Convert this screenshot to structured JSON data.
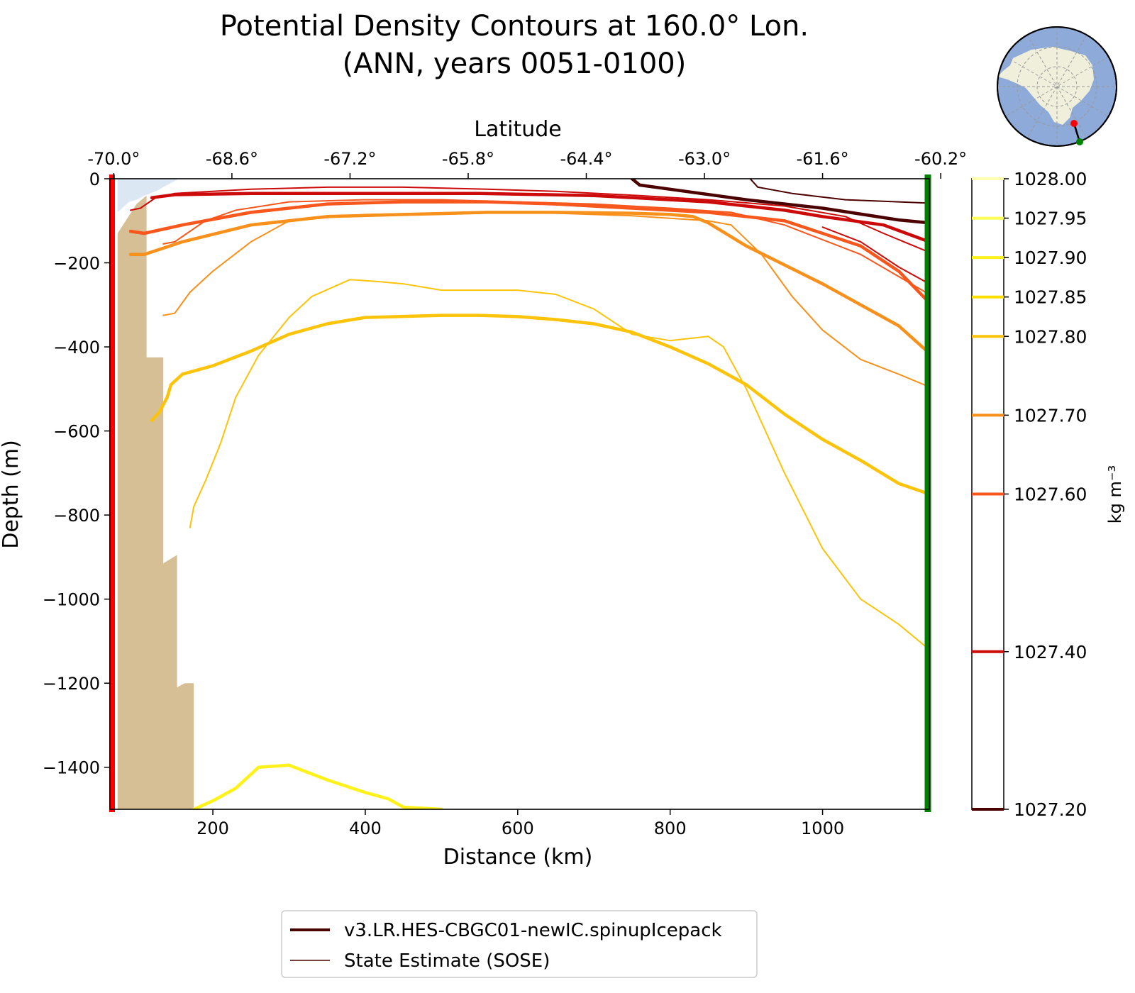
{
  "chart_data": {
    "type": "line",
    "title": "Potential Density Contours at 160.0° Lon.",
    "subtitle": "(ANN, years 0051-0100)",
    "xlabel": "Distance (km)",
    "ylabel": "Depth (m)",
    "top_xlabel": "Latitude",
    "xlim": [
      65,
      1140
    ],
    "ylim": [
      -1500,
      0
    ],
    "x_ticks": [
      200,
      400,
      600,
      800,
      1000
    ],
    "y_ticks": [
      0,
      -200,
      -400,
      -600,
      -800,
      -1000,
      -1200,
      -1400
    ],
    "y_tick_labels": [
      "0",
      "−200",
      "−400",
      "−600",
      "−800",
      "−1000",
      "−1200",
      "−1400"
    ],
    "top_ticks": [
      {
        "x": 70,
        "label": "-70.0°"
      },
      {
        "x": 225,
        "label": "-68.6°"
      },
      {
        "x": 380,
        "label": "-67.2°"
      },
      {
        "x": 535,
        "label": "-65.8°"
      },
      {
        "x": 690,
        "label": "-64.4°"
      },
      {
        "x": 845,
        "label": "-63.0°"
      },
      {
        "x": 1000,
        "label": "-61.6°"
      },
      {
        "x": 1155,
        "label": "-60.2°"
      }
    ],
    "start_marker_color": "#ff0000",
    "end_marker_color": "#008000",
    "bathymetry_color": "#d7bf95",
    "ice_color": "#dbe7f3",
    "bathymetry": [
      [
        75,
        -1500
      ],
      [
        75,
        -130
      ],
      [
        100,
        -60
      ],
      [
        113,
        -40
      ],
      [
        113,
        -425
      ],
      [
        135,
        -425
      ],
      [
        135,
        -915
      ],
      [
        153,
        -895
      ],
      [
        153,
        -1210
      ],
      [
        163,
        -1200
      ],
      [
        175,
        -1200
      ],
      [
        175,
        -1500
      ]
    ],
    "ice": [
      [
        75,
        -80
      ],
      [
        75,
        0
      ],
      [
        155,
        0
      ],
      [
        140,
        -15
      ],
      [
        125,
        -30
      ],
      [
        110,
        -40
      ],
      [
        100,
        -50
      ],
      [
        90,
        -55
      ]
    ],
    "colorbar": {
      "label": "kg m⁻³",
      "levels": [
        {
          "value": 1028.0,
          "label": "1028.00",
          "color": "#ffffb0"
        },
        {
          "value": 1027.95,
          "label": "1027.95",
          "color": "#ffff55"
        },
        {
          "value": 1027.9,
          "label": "1027.90",
          "color": "#fff21a"
        },
        {
          "value": 1027.85,
          "label": "1027.85",
          "color": "#ffe000"
        },
        {
          "value": 1027.8,
          "label": "1027.80",
          "color": "#fbc40a"
        },
        {
          "value": 1027.7,
          "label": "1027.70",
          "color": "#f8901c"
        },
        {
          "value": 1027.6,
          "label": "1027.60",
          "color": "#f7571c"
        },
        {
          "value": 1027.4,
          "label": "1027.40",
          "color": "#cc0a0a"
        },
        {
          "value": 1027.2,
          "label": "1027.20",
          "color": "#4d0000"
        }
      ]
    },
    "series": [
      {
        "level": 1027.2,
        "style": "model",
        "points": [
          [
            750,
            0
          ],
          [
            760,
            -15
          ],
          [
            800,
            -25
          ],
          [
            900,
            -50
          ],
          [
            1000,
            -70
          ],
          [
            1100,
            -98
          ],
          [
            1140,
            -105
          ]
        ]
      },
      {
        "level": 1027.2,
        "style": "sose",
        "points": [
          [
            905,
            0
          ],
          [
            915,
            -20
          ],
          [
            960,
            -35
          ],
          [
            1030,
            -50
          ],
          [
            1100,
            -55
          ],
          [
            1140,
            -58
          ]
        ]
      },
      {
        "level": 1027.4,
        "style": "model",
        "points": [
          [
            120,
            -45
          ],
          [
            150,
            -38
          ],
          [
            250,
            -35
          ],
          [
            400,
            -35
          ],
          [
            550,
            -35
          ],
          [
            700,
            -40
          ],
          [
            850,
            -55
          ],
          [
            950,
            -75
          ],
          [
            1000,
            -90
          ],
          [
            1080,
            -110
          ],
          [
            1140,
            -150
          ]
        ]
      },
      {
        "level": 1027.4,
        "style": "sose",
        "points": [
          [
            92,
            -75
          ],
          [
            105,
            -70
          ],
          [
            125,
            -45
          ],
          [
            150,
            -35
          ],
          [
            200,
            -30
          ],
          [
            250,
            -25
          ],
          [
            350,
            -20
          ],
          [
            450,
            -20
          ],
          [
            560,
            -25
          ],
          [
            650,
            -30
          ],
          [
            760,
            -40
          ],
          [
            850,
            -50
          ],
          [
            950,
            -65
          ],
          [
            1030,
            -90
          ],
          [
            1080,
            -130
          ],
          [
            1140,
            -175
          ]
        ]
      },
      {
        "level": 1027.4,
        "style": "sose",
        "points": [
          [
            1000,
            -115
          ],
          [
            1050,
            -150
          ],
          [
            1100,
            -210
          ],
          [
            1140,
            -250
          ]
        ]
      },
      {
        "level": 1027.6,
        "style": "model",
        "points": [
          [
            92,
            -125
          ],
          [
            110,
            -130
          ],
          [
            160,
            -110
          ],
          [
            250,
            -80
          ],
          [
            350,
            -60
          ],
          [
            450,
            -55
          ],
          [
            560,
            -55
          ],
          [
            650,
            -60
          ],
          [
            750,
            -70
          ],
          [
            850,
            -80
          ],
          [
            950,
            -100
          ],
          [
            1050,
            -160
          ],
          [
            1100,
            -220
          ],
          [
            1140,
            -295
          ]
        ]
      },
      {
        "level": 1027.6,
        "style": "sose",
        "points": [
          [
            135,
            -155
          ],
          [
            150,
            -150
          ],
          [
            190,
            -100
          ],
          [
            230,
            -75
          ],
          [
            300,
            -55
          ],
          [
            400,
            -50
          ],
          [
            500,
            -50
          ],
          [
            600,
            -55
          ],
          [
            700,
            -60
          ],
          [
            800,
            -70
          ],
          [
            880,
            -80
          ],
          [
            950,
            -110
          ],
          [
            1050,
            -180
          ],
          [
            1140,
            -275
          ]
        ]
      },
      {
        "level": 1027.7,
        "style": "model",
        "points": [
          [
            92,
            -180
          ],
          [
            110,
            -180
          ],
          [
            160,
            -150
          ],
          [
            250,
            -110
          ],
          [
            350,
            -90
          ],
          [
            450,
            -85
          ],
          [
            560,
            -80
          ],
          [
            650,
            -80
          ],
          [
            750,
            -82
          ],
          [
            800,
            -85
          ],
          [
            830,
            -90
          ],
          [
            850,
            -105
          ],
          [
            900,
            -160
          ],
          [
            1000,
            -250
          ],
          [
            1100,
            -350
          ],
          [
            1140,
            -415
          ]
        ]
      },
      {
        "level": 1027.7,
        "style": "sose",
        "points": [
          [
            135,
            -325
          ],
          [
            150,
            -320
          ],
          [
            170,
            -270
          ],
          [
            200,
            -220
          ],
          [
            250,
            -150
          ],
          [
            300,
            -100
          ],
          [
            400,
            -85
          ],
          [
            550,
            -80
          ],
          [
            650,
            -82
          ],
          [
            750,
            -88
          ],
          [
            850,
            -100
          ],
          [
            880,
            -110
          ],
          [
            920,
            -180
          ],
          [
            960,
            -280
          ],
          [
            1000,
            -360
          ],
          [
            1050,
            -430
          ],
          [
            1100,
            -465
          ],
          [
            1140,
            -495
          ]
        ]
      },
      {
        "level": 1027.8,
        "style": "model",
        "points": [
          [
            120,
            -575
          ],
          [
            130,
            -555
          ],
          [
            140,
            -520
          ],
          [
            145,
            -490
          ],
          [
            160,
            -465
          ],
          [
            200,
            -445
          ],
          [
            250,
            -410
          ],
          [
            300,
            -370
          ],
          [
            350,
            -345
          ],
          [
            400,
            -330
          ],
          [
            500,
            -325
          ],
          [
            550,
            -325
          ],
          [
            600,
            -328
          ],
          [
            650,
            -335
          ],
          [
            700,
            -345
          ],
          [
            750,
            -365
          ],
          [
            800,
            -400
          ],
          [
            850,
            -440
          ],
          [
            900,
            -490
          ],
          [
            950,
            -560
          ],
          [
            1000,
            -620
          ],
          [
            1050,
            -670
          ],
          [
            1100,
            -725
          ],
          [
            1140,
            -750
          ]
        ]
      },
      {
        "level": 1027.8,
        "style": "sose",
        "points": [
          [
            170,
            -830
          ],
          [
            175,
            -780
          ],
          [
            190,
            -720
          ],
          [
            210,
            -630
          ],
          [
            230,
            -520
          ],
          [
            260,
            -420
          ],
          [
            300,
            -330
          ],
          [
            330,
            -280
          ],
          [
            380,
            -240
          ],
          [
            420,
            -245
          ],
          [
            450,
            -250
          ],
          [
            500,
            -265
          ],
          [
            550,
            -265
          ],
          [
            600,
            -265
          ],
          [
            650,
            -275
          ],
          [
            700,
            -310
          ],
          [
            750,
            -370
          ],
          [
            800,
            -385
          ],
          [
            850,
            -375
          ],
          [
            870,
            -400
          ],
          [
            900,
            -500
          ],
          [
            950,
            -700
          ],
          [
            1000,
            -880
          ],
          [
            1050,
            -1000
          ],
          [
            1100,
            -1060
          ],
          [
            1140,
            -1120
          ]
        ]
      },
      {
        "level": 1027.9,
        "style": "model",
        "points": [
          [
            175,
            -1500
          ],
          [
            200,
            -1480
          ],
          [
            230,
            -1450
          ],
          [
            260,
            -1400
          ],
          [
            300,
            -1395
          ],
          [
            350,
            -1430
          ],
          [
            400,
            -1460
          ],
          [
            430,
            -1475
          ],
          [
            450,
            -1495
          ],
          [
            500,
            -1500
          ]
        ]
      }
    ],
    "legend": {
      "entries": [
        {
          "label": "v3.LR.HES-CBGC01-newIC.spinupIcepack",
          "width": 4
        },
        {
          "label": "State Estimate (SOSE)",
          "width": 1.5
        }
      ],
      "color": "#4d0000",
      "position": "bottom-center"
    },
    "inset_map": {
      "type": "south polar stereographic",
      "ocean_color": "#8eaad9",
      "land_color": "#efefdc",
      "start_color": "#ff0000",
      "end_color": "#008000"
    }
  }
}
